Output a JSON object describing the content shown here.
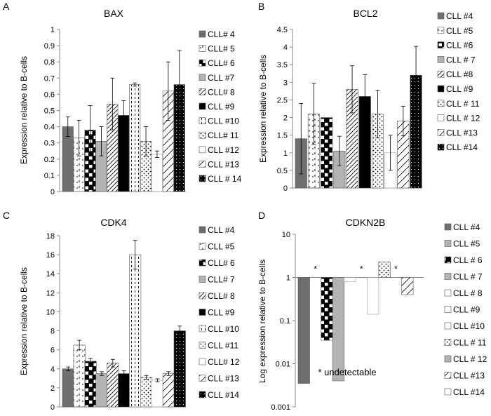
{
  "chart_data": [
    {
      "panel_letter": "A",
      "type": "bar",
      "title": "BAX",
      "ylabel": "Expression relative to B-cells",
      "ylim": [
        0,
        1
      ],
      "yticks": [
        0,
        0.1,
        0.2,
        0.3,
        0.4,
        0.5,
        0.6,
        0.7,
        0.8,
        0.9,
        1
      ],
      "legend_position": "right",
      "series": [
        {
          "name": "CLL# 4",
          "value": 0.4,
          "error": 0.06,
          "fill": "dark-gray"
        },
        {
          "name": "CLL# 5",
          "value": 0.33,
          "error": 0.11,
          "fill": "sparse-dash"
        },
        {
          "name": "CLL# 6",
          "value": 0.38,
          "error": 0.15,
          "fill": "black-squares"
        },
        {
          "name": "CLL #7",
          "value": 0.31,
          "error": 0.09,
          "fill": "light-gray"
        },
        {
          "name": "CLL# 8",
          "value": 0.54,
          "error": 0.16,
          "fill": "diagonal"
        },
        {
          "name": "CLL #9",
          "value": 0.47,
          "error": 0.09,
          "fill": "black"
        },
        {
          "name": "CLL #10",
          "value": 0.66,
          "error": 0.01,
          "fill": "vertical-dash"
        },
        {
          "name": "CLL# 11",
          "value": 0.31,
          "error": 0.09,
          "fill": "dots-diagonal"
        },
        {
          "name": "CLL #12",
          "value": 0.23,
          "error": 0.02,
          "fill": "white"
        },
        {
          "name": "CLL #13",
          "value": 0.62,
          "error": 0.18,
          "fill": "wide-diagonal"
        },
        {
          "name": "CLL # 14",
          "value": 0.66,
          "error": 0.21,
          "fill": "black-dotted"
        }
      ]
    },
    {
      "panel_letter": "B",
      "type": "bar",
      "title": "BCL2",
      "ylabel": "Expression relative to B-cells",
      "ylim": [
        0,
        4.5
      ],
      "yticks": [
        0,
        0.5,
        1,
        1.5,
        2,
        2.5,
        3,
        3.5,
        4,
        4.5
      ],
      "legend_position": "right",
      "series": [
        {
          "name": "CLL #4",
          "value": 1.4,
          "error": 1.0,
          "fill": "dark-gray"
        },
        {
          "name": "CLL #5",
          "value": 2.1,
          "error": 0.87,
          "fill": "sparse-dash"
        },
        {
          "name": "CLL #6",
          "value": 2.0,
          "error": 0.0,
          "fill": "black-squares"
        },
        {
          "name": "CLL # 7",
          "value": 1.05,
          "error": 0.42,
          "fill": "light-gray"
        },
        {
          "name": "CLL #8",
          "value": 2.8,
          "error": 0.67,
          "fill": "diagonal"
        },
        {
          "name": "CLL #9",
          "value": 2.6,
          "error": 0.62,
          "fill": "black"
        },
        {
          "name": "CLL # 11",
          "value": 2.1,
          "error": 0.68,
          "fill": "dots-diagonal"
        },
        {
          "name": "CLL # 12",
          "value": 1.0,
          "error": 0.5,
          "fill": "white"
        },
        {
          "name": "CLL #13",
          "value": 1.9,
          "error": 0.42,
          "fill": "wide-diagonal"
        },
        {
          "name": "CLL #14",
          "value": 3.2,
          "error": 0.82,
          "fill": "black-dotted"
        }
      ]
    },
    {
      "panel_letter": "C",
      "type": "bar",
      "title": "CDK4",
      "ylabel": "Expression relative to B-cells",
      "ylim": [
        0,
        18
      ],
      "yticks": [
        0,
        2,
        4,
        6,
        8,
        10,
        12,
        14,
        16,
        18
      ],
      "legend_position": "right",
      "series": [
        {
          "name": "CLL #4",
          "value": 4.0,
          "error": 0.2,
          "fill": "dark-gray"
        },
        {
          "name": "CLL #5",
          "value": 6.5,
          "error": 0.5,
          "fill": "sparse-dash"
        },
        {
          "name": "CLL# 6",
          "value": 4.8,
          "error": 0.3,
          "fill": "black-squares"
        },
        {
          "name": "CLL# 7",
          "value": 3.5,
          "error": 0.2,
          "fill": "light-gray"
        },
        {
          "name": "CLL# 8",
          "value": 4.6,
          "error": 0.4,
          "fill": "diagonal"
        },
        {
          "name": "CLL #9",
          "value": 3.5,
          "error": 0.3,
          "fill": "black"
        },
        {
          "name": "CLL #10",
          "value": 16.0,
          "error": 1.5,
          "fill": "vertical-dash"
        },
        {
          "name": "CLL #11",
          "value": 3.1,
          "error": 0.2,
          "fill": "dots-diagonal"
        },
        {
          "name": "CLL# 12",
          "value": 2.8,
          "error": 0.15,
          "fill": "white"
        },
        {
          "name": "CLL #13",
          "value": 3.5,
          "error": 0.2,
          "fill": "wide-diagonal"
        },
        {
          "name": "CLL #14",
          "value": 8.0,
          "error": 0.5,
          "fill": "black-dotted"
        }
      ]
    },
    {
      "panel_letter": "D",
      "type": "bar",
      "title": "CDKN2B",
      "ylabel": "Log expression relative to B-cells",
      "yscale": "log",
      "ylim": [
        0.001,
        10
      ],
      "yticks": [
        0.001,
        0.01,
        0.1,
        1,
        10
      ],
      "ytick_labels": [
        "0.001",
        "0.01",
        "0.1",
        "1",
        "10"
      ],
      "legend_position": "right",
      "annotation": "* undetectable",
      "undetectable_marker": "*",
      "series": [
        {
          "name": "CLL #4",
          "value": 0.0035,
          "fill": "dark-gray"
        },
        {
          "name": "CLL #5",
          "value": null,
          "undetectable": true,
          "fill": "light-gray"
        },
        {
          "name": "CLL # 6",
          "value": 0.035,
          "fill": "black-squares"
        },
        {
          "name": "CLL # 7",
          "value": 0.004,
          "fill": "light-gray"
        },
        {
          "name": "CLL # 8",
          "value": 0.8,
          "fill": "white"
        },
        {
          "name": "CLL #9",
          "value": null,
          "undetectable": true,
          "fill": "white"
        },
        {
          "name": "CLL #10",
          "value": 0.14,
          "fill": "white"
        },
        {
          "name": "CLL # 11",
          "value": 2.3,
          "fill": "dots-diagonal"
        },
        {
          "name": "CLL # 12",
          "value": null,
          "undetectable": true,
          "fill": "light-gray"
        },
        {
          "name": "CLL #13",
          "value": 0.4,
          "fill": "wide-diagonal"
        },
        {
          "name": "CLL #14",
          "value": null,
          "fill": "white"
        }
      ]
    }
  ]
}
